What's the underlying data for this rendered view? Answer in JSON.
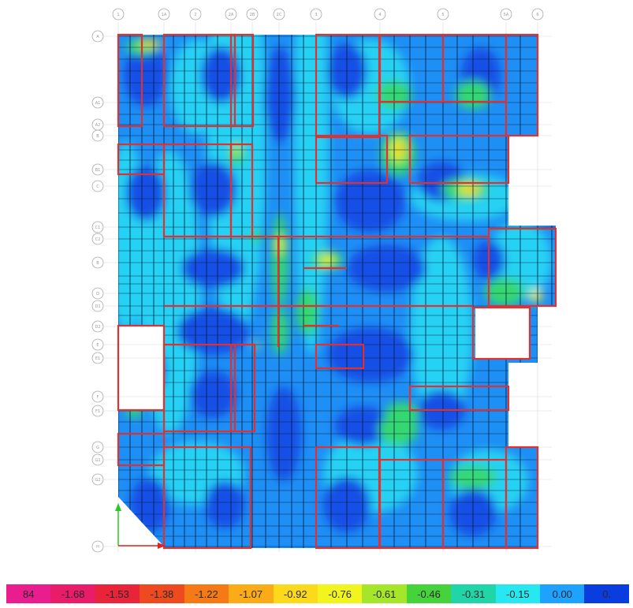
{
  "grid": {
    "columns": [
      "1",
      "1A",
      "2",
      "2A",
      "2B",
      "2C",
      "3",
      "4",
      "5",
      "5A",
      "6"
    ],
    "rows": [
      "A",
      "A1",
      "A2",
      "B",
      "B1",
      "C",
      "C1",
      "C2",
      "B",
      "D",
      "D1",
      "D2",
      "E",
      "E1",
      "F",
      "F1",
      "G",
      "G1",
      "G2",
      "H"
    ]
  },
  "legend": {
    "labels": [
      "84",
      "-1.68",
      "-1.53",
      "-1.38",
      "-1.22",
      "-1.07",
      "-0.92",
      "-0.76",
      "-0.61",
      "-0.46",
      "-0.31",
      "-0.15",
      "0.00",
      "0."
    ],
    "colors": [
      "#ea1d8e",
      "#e91c6a",
      "#e8233a",
      "#ee4a20",
      "#f57a16",
      "#fbab16",
      "#fcd91b",
      "#f1f51d",
      "#a6e62a",
      "#45d23b",
      "#20d6a8",
      "#27e8f0",
      "#1ea2ff",
      "#0a3de0"
    ]
  },
  "contour_colors": {
    "deep": "#1550e6",
    "mid": "#1e8ff5",
    "cyan": "#28d2f3",
    "green": "#35d870",
    "yellow": "#e6f22c",
    "orange": "#f7a01e",
    "beam": "#e03030"
  }
}
